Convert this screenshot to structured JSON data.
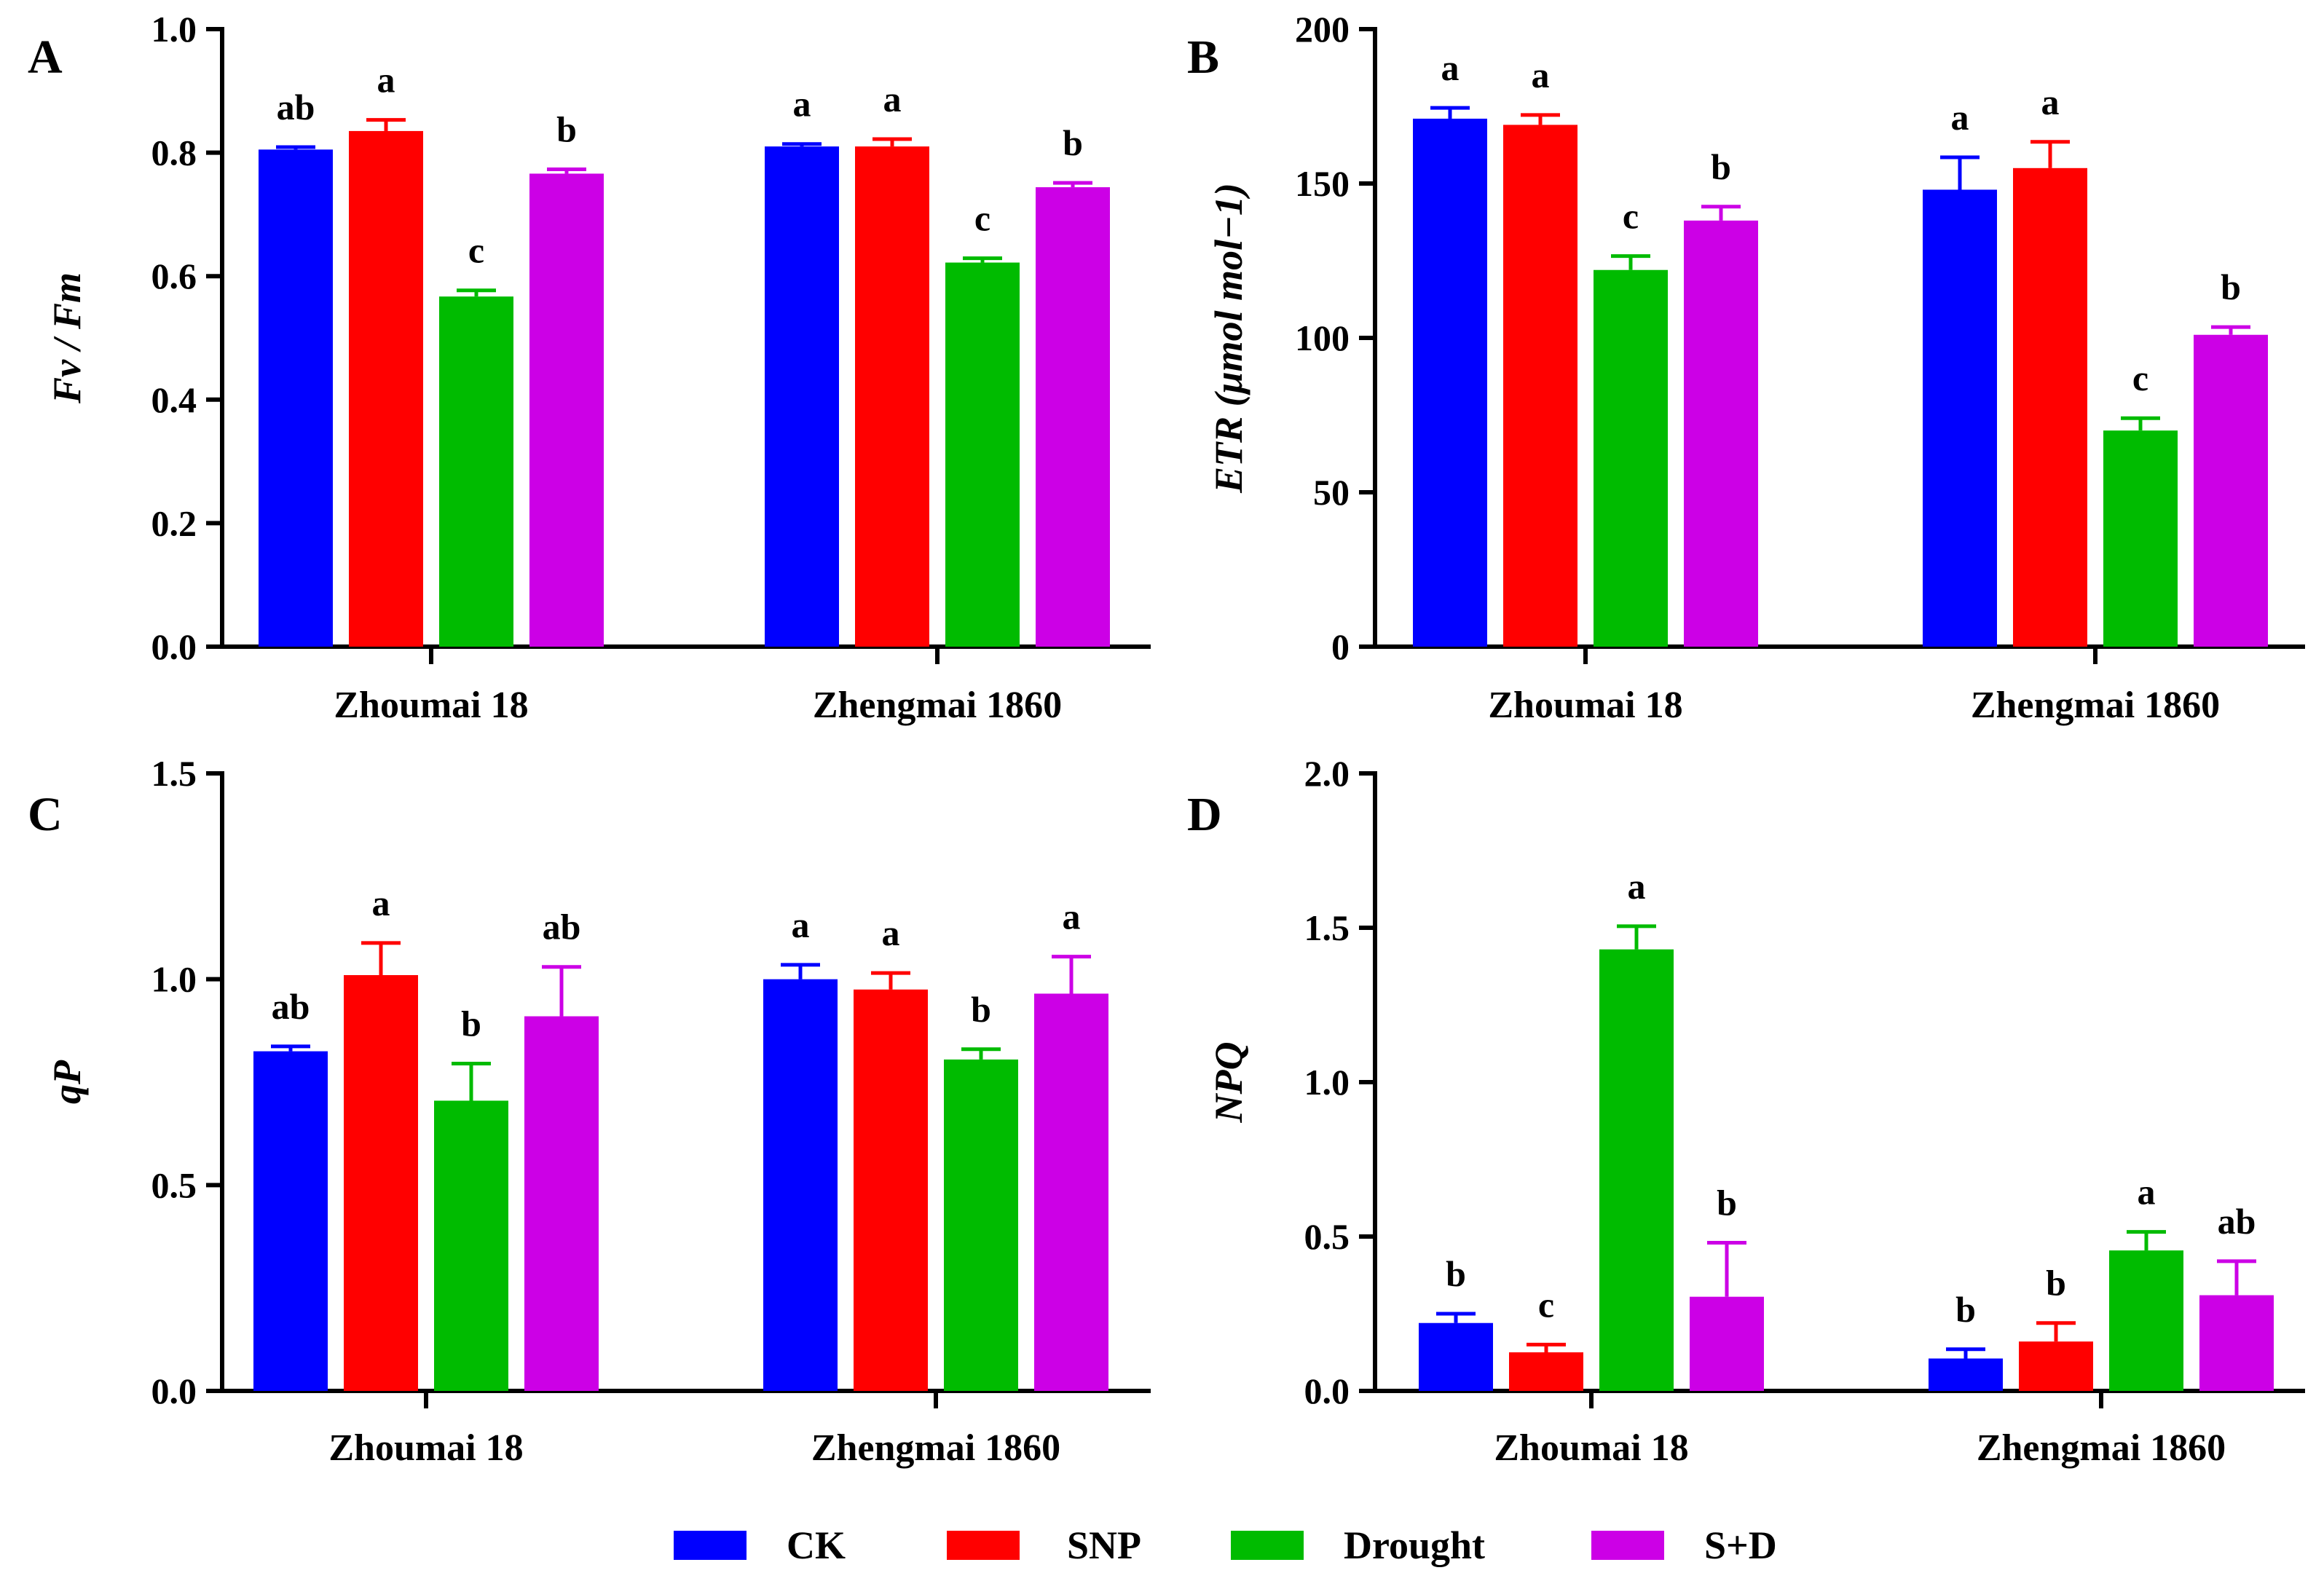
{
  "legend": [
    {
      "name": "CK",
      "color": "#0000ff"
    },
    {
      "name": "SNP",
      "color": "#ff0000"
    },
    {
      "name": "Drought",
      "color": "#00bb00"
    },
    {
      "name": "S+D",
      "color": "#cc00e6"
    }
  ],
  "chart_data": [
    {
      "panel": "A",
      "type": "bar",
      "categories": [
        "Zhoumai 18",
        "Zhengmai 1860"
      ],
      "ylabel": "Fv / Fm",
      "ylim": [
        0,
        1.0
      ],
      "yticks": [
        "0.0",
        "0.2",
        "0.4",
        "0.6",
        "0.8",
        "1.0"
      ],
      "ytick_values": [
        0,
        0.2,
        0.4,
        0.6,
        0.8,
        1.0
      ],
      "series": [
        {
          "name": "CK",
          "values": [
            0.805,
            0.81
          ],
          "errors": [
            0.004,
            0.004
          ],
          "letters": [
            "ab",
            "a"
          ]
        },
        {
          "name": "SNP",
          "values": [
            0.835,
            0.81
          ],
          "errors": [
            0.018,
            0.012
          ],
          "letters": [
            "a",
            "a"
          ]
        },
        {
          "name": "Drought",
          "values": [
            0.567,
            0.622
          ],
          "errors": [
            0.01,
            0.007
          ],
          "letters": [
            "c",
            "c"
          ]
        },
        {
          "name": "S+D",
          "values": [
            0.766,
            0.744
          ],
          "errors": [
            0.007,
            0.007
          ],
          "letters": [
            "b",
            "b"
          ]
        }
      ]
    },
    {
      "panel": "B",
      "type": "bar",
      "categories": [
        "Zhoumai 18",
        "Zhengmai 1860"
      ],
      "ylabel": "ETR (μmol mol−1)",
      "ylim": [
        0,
        200
      ],
      "yticks": [
        "0",
        "50",
        "100",
        "150",
        "200"
      ],
      "ytick_values": [
        0,
        50,
        100,
        150,
        200
      ],
      "series": [
        {
          "name": "CK",
          "values": [
            171,
            148
          ],
          "errors": [
            3.5,
            10.5
          ],
          "letters": [
            "a",
            "a"
          ]
        },
        {
          "name": "SNP",
          "values": [
            169,
            155
          ],
          "errors": [
            3.2,
            8.5
          ],
          "letters": [
            "a",
            "a"
          ]
        },
        {
          "name": "Drought",
          "values": [
            122,
            70
          ],
          "errors": [
            4.5,
            4
          ],
          "letters": [
            "c",
            "c"
          ]
        },
        {
          "name": "S+D",
          "values": [
            138,
            101
          ],
          "errors": [
            4.5,
            2.5
          ],
          "letters": [
            "b",
            "b"
          ]
        }
      ]
    },
    {
      "panel": "C",
      "type": "bar",
      "categories": [
        "Zhoumai 18",
        "Zhengmai 1860"
      ],
      "ylabel": "qP",
      "ylim": [
        0,
        1.5
      ],
      "yticks": [
        "0.0",
        "0.5",
        "1.0",
        "1.5"
      ],
      "ytick_values": [
        0,
        0.5,
        1.0,
        1.5
      ],
      "series": [
        {
          "name": "CK",
          "values": [
            0.825,
            1.0
          ],
          "errors": [
            0.012,
            0.035
          ],
          "letters": [
            "ab",
            "a"
          ]
        },
        {
          "name": "SNP",
          "values": [
            1.01,
            0.975
          ],
          "errors": [
            0.078,
            0.04
          ],
          "letters": [
            "a",
            "a"
          ]
        },
        {
          "name": "Drought",
          "values": [
            0.705,
            0.805
          ],
          "errors": [
            0.09,
            0.025
          ],
          "letters": [
            "b",
            "b"
          ]
        },
        {
          "name": "S+D",
          "values": [
            0.91,
            0.965
          ],
          "errors": [
            0.12,
            0.09
          ],
          "letters": [
            "ab",
            "a"
          ]
        }
      ]
    },
    {
      "panel": "D",
      "type": "bar",
      "categories": [
        "Zhoumai 18",
        "Zhengmai 1860"
      ],
      "ylabel": "NPQ",
      "ylim": [
        0,
        2.0
      ],
      "yticks": [
        "0.0",
        "0.5",
        "1.0",
        "1.5",
        "2.0"
      ],
      "ytick_values": [
        0,
        0.5,
        1.0,
        1.5,
        2.0
      ],
      "series": [
        {
          "name": "CK",
          "values": [
            0.22,
            0.105
          ],
          "errors": [
            0.03,
            0.03
          ],
          "letters": [
            "b",
            "b"
          ]
        },
        {
          "name": "SNP",
          "values": [
            0.125,
            0.16
          ],
          "errors": [
            0.025,
            0.06
          ],
          "letters": [
            "c",
            "b"
          ]
        },
        {
          "name": "Drought",
          "values": [
            1.43,
            0.455
          ],
          "errors": [
            0.075,
            0.06
          ],
          "letters": [
            "a",
            "a"
          ]
        },
        {
          "name": "S+D",
          "values": [
            0.305,
            0.31
          ],
          "errors": [
            0.175,
            0.11
          ],
          "letters": [
            "b",
            "ab"
          ]
        }
      ]
    }
  ]
}
